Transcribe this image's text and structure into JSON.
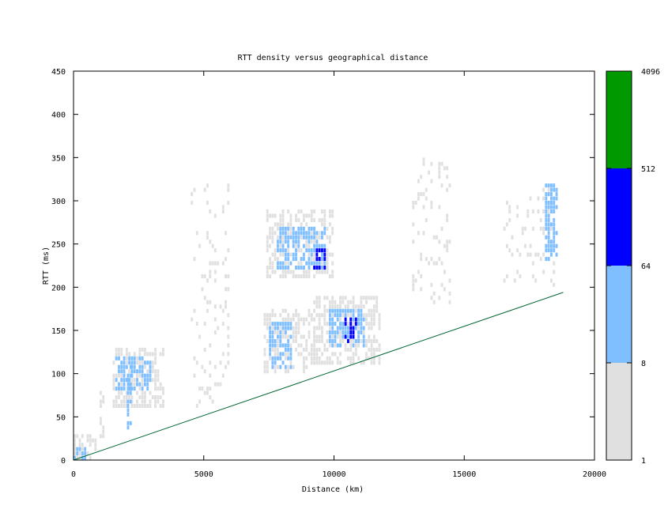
{
  "chart_data": {
    "type": "heatmap",
    "title": "RTT density versus geographical distance",
    "xlabel": "Distance (km)",
    "ylabel": "RTT (ms)",
    "xlim": [
      0,
      20000
    ],
    "ylim": [
      0,
      450
    ],
    "x_ticks": [
      "0",
      "5000",
      "10000",
      "15000",
      "20000"
    ],
    "y_ticks": [
      "0",
      "50",
      "100",
      "150",
      "200",
      "250",
      "300",
      "350",
      "400",
      "450"
    ],
    "colorbar": {
      "ticks": [
        "1",
        "8",
        "64",
        "512",
        "4096"
      ],
      "bins": [
        {
          "from": 1,
          "to": 8,
          "color": "#e0e0e0"
        },
        {
          "from": 8,
          "to": 64,
          "color": "#7fbfff"
        },
        {
          "from": 64,
          "to": 512,
          "color": "#0000ff"
        },
        {
          "from": 512,
          "to": 4096,
          "color": "#009900"
        }
      ]
    },
    "reference_line": {
      "color": "#006633",
      "points": [
        [
          0,
          0
        ],
        [
          18800,
          194
        ]
      ]
    },
    "density_clusters": [
      {
        "x": [
          0,
          900
        ],
        "y": [
          0,
          30
        ],
        "level": "light"
      },
      {
        "x": [
          0,
          500
        ],
        "y": [
          0,
          12
        ],
        "level": "mid"
      },
      {
        "x": [
          1000,
          1200
        ],
        "y": [
          25,
          80
        ],
        "level": "light"
      },
      {
        "x": [
          1500,
          3500
        ],
        "y": [
          60,
          130
        ],
        "level": "light"
      },
      {
        "x": [
          1600,
          3000
        ],
        "y": [
          80,
          120
        ],
        "level": "mid"
      },
      {
        "x": [
          2050,
          2250
        ],
        "y": [
          35,
          110
        ],
        "level": "mid"
      },
      {
        "x": [
          4500,
          6000
        ],
        "y": [
          60,
          320
        ],
        "level": "sparse"
      },
      {
        "x": [
          7400,
          10000
        ],
        "y": [
          210,
          290
        ],
        "level": "light"
      },
      {
        "x": [
          7800,
          9700
        ],
        "y": [
          220,
          270
        ],
        "level": "mid"
      },
      {
        "x": [
          9200,
          9700
        ],
        "y": [
          220,
          245
        ],
        "level": "dark"
      },
      {
        "x": [
          7300,
          9200
        ],
        "y": [
          100,
          175
        ],
        "level": "light"
      },
      {
        "x": [
          7500,
          8400
        ],
        "y": [
          105,
          160
        ],
        "level": "mid"
      },
      {
        "x": [
          9200,
          11800
        ],
        "y": [
          110,
          190
        ],
        "level": "light"
      },
      {
        "x": [
          9800,
          11200
        ],
        "y": [
          130,
          175
        ],
        "level": "mid"
      },
      {
        "x": [
          10400,
          10900
        ],
        "y": [
          135,
          165
        ],
        "level": "dark"
      },
      {
        "x": [
          13000,
          14500
        ],
        "y": [
          180,
          350
        ],
        "level": "sparse"
      },
      {
        "x": [
          16500,
          18500
        ],
        "y": [
          200,
          320
        ],
        "level": "sparse"
      },
      {
        "x": [
          18100,
          18600
        ],
        "y": [
          230,
          320
        ],
        "level": "mid"
      }
    ]
  }
}
